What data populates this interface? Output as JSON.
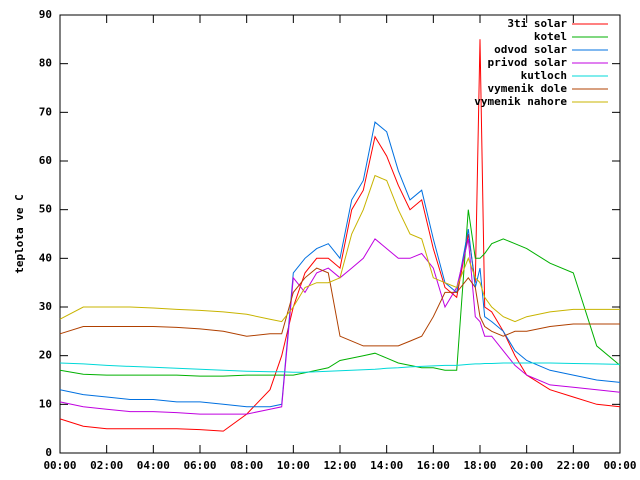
{
  "chart_data": {
    "type": "line",
    "ylabel": "teplota ve C",
    "x": [
      0,
      1,
      2,
      3,
      4,
      5,
      6,
      7,
      8,
      9,
      9.5,
      10,
      10.5,
      11,
      11.5,
      12,
      12.5,
      13,
      13.5,
      14,
      14.5,
      15,
      15.5,
      16,
      16.5,
      17,
      17.5,
      17.8,
      18,
      18.2,
      18.5,
      19,
      19.5,
      20,
      21,
      22,
      23,
      24
    ],
    "series": [
      {
        "name": "3ti solar",
        "color": "#ff0000",
        "values": [
          7,
          5.5,
          5,
          5,
          5,
          5,
          4.8,
          4.5,
          8,
          13,
          20,
          30,
          37,
          40,
          40,
          38,
          50,
          54,
          65,
          61,
          55,
          50,
          52,
          42,
          34,
          32,
          45,
          35,
          85,
          30,
          29,
          25,
          20,
          16,
          13,
          11.5,
          10,
          9.5
        ]
      },
      {
        "name": "kotel",
        "color": "#00b000",
        "values": [
          17,
          16.2,
          16,
          16,
          16,
          16,
          15.8,
          15.8,
          16,
          16,
          16,
          16,
          16.5,
          17,
          17.5,
          19,
          19.5,
          20,
          20.5,
          19.5,
          18.5,
          18,
          17.5,
          17.5,
          17,
          17,
          50,
          40,
          40,
          41,
          43,
          44,
          43,
          42,
          39,
          37,
          22,
          18
        ]
      },
      {
        "name": "odvod solar",
        "color": "#0070e0",
        "values": [
          13,
          12,
          11.5,
          11,
          11,
          10.5,
          10.5,
          10,
          9.5,
          9.5,
          10,
          37,
          40,
          42,
          43,
          40,
          52,
          56,
          68,
          66,
          58,
          52,
          54,
          44,
          35,
          33,
          46,
          34,
          38,
          28,
          27,
          25,
          21,
          19,
          17,
          16,
          15,
          14.5
        ]
      },
      {
        "name": "privod solar",
        "color": "#c000e0",
        "values": [
          10.5,
          9.5,
          9,
          8.5,
          8.5,
          8.3,
          8,
          8,
          8,
          9,
          9.5,
          36,
          33,
          37,
          38,
          36,
          38,
          40,
          44,
          42,
          40,
          40,
          41,
          38,
          30,
          34,
          44,
          28,
          27,
          24,
          24,
          21,
          18,
          16,
          14,
          13.5,
          13,
          12.5
        ]
      },
      {
        "name": "kutloch",
        "color": "#00d8d8",
        "values": [
          18.5,
          18.3,
          18,
          17.8,
          17.6,
          17.4,
          17.2,
          17,
          16.8,
          16.7,
          16.7,
          16.6,
          16.6,
          16.7,
          16.8,
          16.9,
          17,
          17.1,
          17.2,
          17.4,
          17.5,
          17.7,
          17.8,
          17.9,
          18,
          18,
          18.2,
          18.3,
          18.3,
          18.4,
          18.4,
          18.5,
          18.5,
          18.5,
          18.5,
          18.4,
          18.3,
          18.2
        ]
      },
      {
        "name": "vymenik dole",
        "color": "#b04000",
        "values": [
          24.5,
          26,
          26,
          26,
          26,
          25.8,
          25.5,
          25,
          24,
          24.5,
          24.5,
          33,
          36,
          38,
          37,
          24,
          23,
          22,
          22,
          22,
          22,
          23,
          24,
          28,
          33,
          33,
          36,
          34,
          28,
          26,
          25,
          24,
          25,
          25,
          26,
          26.5,
          26.5,
          26.5
        ]
      },
      {
        "name": "vymenik nahore",
        "color": "#c8b400",
        "values": [
          27.5,
          30,
          30,
          30,
          29.8,
          29.5,
          29.3,
          29,
          28.5,
          27.5,
          27,
          30,
          34,
          35,
          35,
          36,
          45,
          50,
          57,
          56,
          50,
          45,
          44,
          36,
          35,
          34,
          40,
          36,
          35,
          32,
          30,
          28,
          27,
          28,
          29,
          29.5,
          29.5,
          29.5
        ]
      }
    ],
    "xlim": [
      0,
      24
    ],
    "xticks": [
      {
        "value": 0,
        "label": "00:00"
      },
      {
        "value": 2,
        "label": "02:00"
      },
      {
        "value": 4,
        "label": "04:00"
      },
      {
        "value": 6,
        "label": "06:00"
      },
      {
        "value": 8,
        "label": "08:00"
      },
      {
        "value": 10,
        "label": "10:00"
      },
      {
        "value": 12,
        "label": "12:00"
      },
      {
        "value": 14,
        "label": "14:00"
      },
      {
        "value": 16,
        "label": "16:00"
      },
      {
        "value": 18,
        "label": "18:00"
      },
      {
        "value": 20,
        "label": "20:00"
      },
      {
        "value": 22,
        "label": "22:00"
      },
      {
        "value": 24,
        "label": "00:00"
      }
    ],
    "ylim": [
      0,
      90
    ],
    "yticks": [
      0,
      10,
      20,
      30,
      40,
      50,
      60,
      70,
      80,
      90
    ],
    "grid": false,
    "legend": "top-right"
  }
}
